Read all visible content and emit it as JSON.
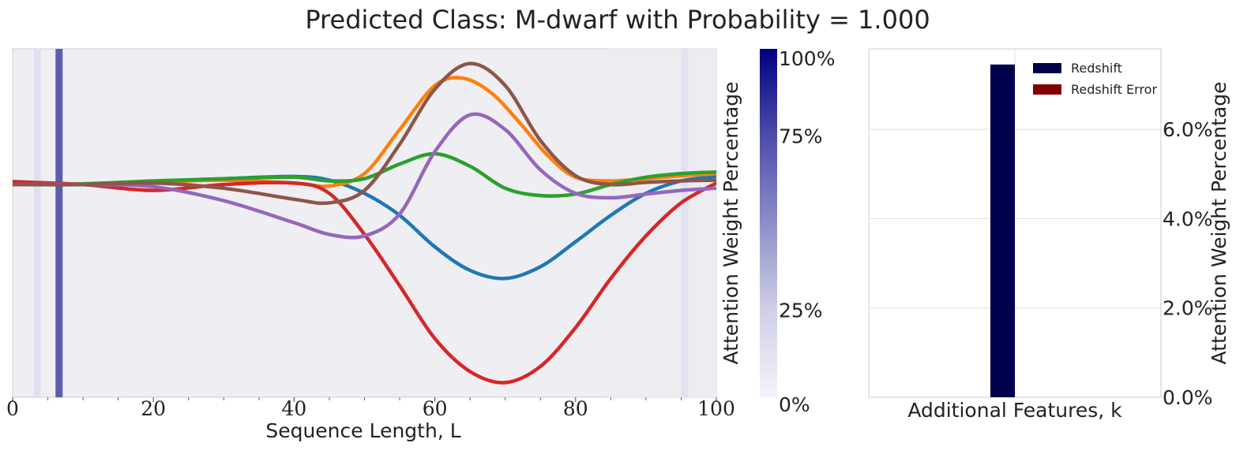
{
  "title": "Predicted Class: M-dwarf with Probability = 1.000",
  "chart_data": [
    {
      "type": "line",
      "xlabel": "Sequence Length, L",
      "ylabel": "",
      "xlim": [
        0,
        100
      ],
      "ylim": [
        -2.9,
        1.85
      ],
      "x_ticks": [
        "0",
        "20",
        "40",
        "60",
        "80",
        "100"
      ],
      "attention_bands": [
        {
          "x": 3.5,
          "weight": 0.06
        },
        {
          "x": 6.6,
          "weight": 0.75
        },
        {
          "x": 95.5,
          "weight": 0.05
        }
      ],
      "background_shading": {
        "x_start": 84.5,
        "x_end": 100
      },
      "series": [
        {
          "color": "#1f77b4",
          "points": [
            [
              0,
              0.0
            ],
            [
              10,
              0.0
            ],
            [
              20,
              0.04
            ],
            [
              30,
              0.08
            ],
            [
              40,
              0.11
            ],
            [
              45,
              0.06
            ],
            [
              50,
              -0.12
            ],
            [
              55,
              -0.42
            ],
            [
              60,
              -0.85
            ],
            [
              65,
              -1.17
            ],
            [
              70,
              -1.28
            ],
            [
              75,
              -1.12
            ],
            [
              80,
              -0.78
            ],
            [
              85,
              -0.42
            ],
            [
              90,
              -0.12
            ],
            [
              95,
              0.05
            ],
            [
              100,
              0.11
            ]
          ]
        },
        {
          "color": "#ff7f0e",
          "points": [
            [
              0,
              0.0
            ],
            [
              10,
              0.0
            ],
            [
              20,
              0.03
            ],
            [
              30,
              0.06
            ],
            [
              40,
              0.02
            ],
            [
              45,
              -0.02
            ],
            [
              50,
              0.15
            ],
            [
              55,
              0.75
            ],
            [
              60,
              1.35
            ],
            [
              64,
              1.45
            ],
            [
              68,
              1.25
            ],
            [
              72,
              0.85
            ],
            [
              76,
              0.4
            ],
            [
              80,
              0.1
            ],
            [
              85,
              0.05
            ],
            [
              90,
              0.08
            ],
            [
              95,
              0.12
            ],
            [
              100,
              0.15
            ]
          ]
        },
        {
          "color": "#2ca02c",
          "points": [
            [
              0,
              0.0
            ],
            [
              10,
              0.01
            ],
            [
              20,
              0.05
            ],
            [
              30,
              0.08
            ],
            [
              40,
              0.1
            ],
            [
              45,
              0.05
            ],
            [
              50,
              0.08
            ],
            [
              55,
              0.28
            ],
            [
              60,
              0.42
            ],
            [
              65,
              0.25
            ],
            [
              70,
              -0.05
            ],
            [
              75,
              -0.15
            ],
            [
              80,
              -0.13
            ],
            [
              85,
              0.0
            ],
            [
              90,
              0.1
            ],
            [
              95,
              0.15
            ],
            [
              100,
              0.17
            ]
          ]
        },
        {
          "color": "#d62728",
          "points": [
            [
              0,
              0.04
            ],
            [
              10,
              0.0
            ],
            [
              20,
              -0.08
            ],
            [
              30,
              0.0
            ],
            [
              40,
              0.02
            ],
            [
              45,
              -0.12
            ],
            [
              50,
              -0.68
            ],
            [
              55,
              -1.38
            ],
            [
              60,
              -2.1
            ],
            [
              65,
              -2.55
            ],
            [
              70,
              -2.7
            ],
            [
              75,
              -2.48
            ],
            [
              80,
              -1.95
            ],
            [
              85,
              -1.28
            ],
            [
              90,
              -0.7
            ],
            [
              95,
              -0.25
            ],
            [
              100,
              0.02
            ]
          ]
        },
        {
          "color": "#9467bd",
          "points": [
            [
              0,
              0.0
            ],
            [
              10,
              0.0
            ],
            [
              20,
              -0.03
            ],
            [
              30,
              -0.22
            ],
            [
              40,
              -0.52
            ],
            [
              45,
              -0.68
            ],
            [
              50,
              -0.7
            ],
            [
              55,
              -0.4
            ],
            [
              60,
              0.45
            ],
            [
              65,
              0.95
            ],
            [
              70,
              0.75
            ],
            [
              75,
              0.2
            ],
            [
              80,
              -0.12
            ],
            [
              85,
              -0.18
            ],
            [
              90,
              -0.13
            ],
            [
              95,
              -0.08
            ],
            [
              100,
              -0.05
            ]
          ]
        },
        {
          "color": "#8c564b",
          "points": [
            [
              0,
              0.0
            ],
            [
              10,
              0.0
            ],
            [
              20,
              0.02
            ],
            [
              30,
              -0.05
            ],
            [
              40,
              -0.2
            ],
            [
              45,
              -0.25
            ],
            [
              50,
              -0.08
            ],
            [
              55,
              0.55
            ],
            [
              60,
              1.3
            ],
            [
              65,
              1.65
            ],
            [
              70,
              1.35
            ],
            [
              75,
              0.6
            ],
            [
              80,
              0.12
            ],
            [
              85,
              0.0
            ],
            [
              90,
              0.03
            ],
            [
              95,
              0.05
            ],
            [
              100,
              0.06
            ]
          ]
        }
      ]
    },
    {
      "type": "colorbar",
      "ylabel": "Attention Weight Percentage",
      "range": [
        0,
        100
      ],
      "ticks": [
        "100%",
        "75%",
        "25%",
        "0%"
      ],
      "colors": [
        "#f4f4fa",
        "#000080"
      ]
    },
    {
      "type": "bar",
      "xlabel": "Additional Features, k",
      "ylabel": "Attention Weight Percentage",
      "ylim": [
        0,
        7.8
      ],
      "y_ticks": [
        "6.0%",
        "4.0%",
        "2.0%",
        "0.0%"
      ],
      "series": [
        {
          "name": "Redshift",
          "value": 7.45,
          "color": "#00004a"
        },
        {
          "name": "Redshift Error",
          "value": 0.0,
          "color": "#800000"
        }
      ]
    }
  ]
}
